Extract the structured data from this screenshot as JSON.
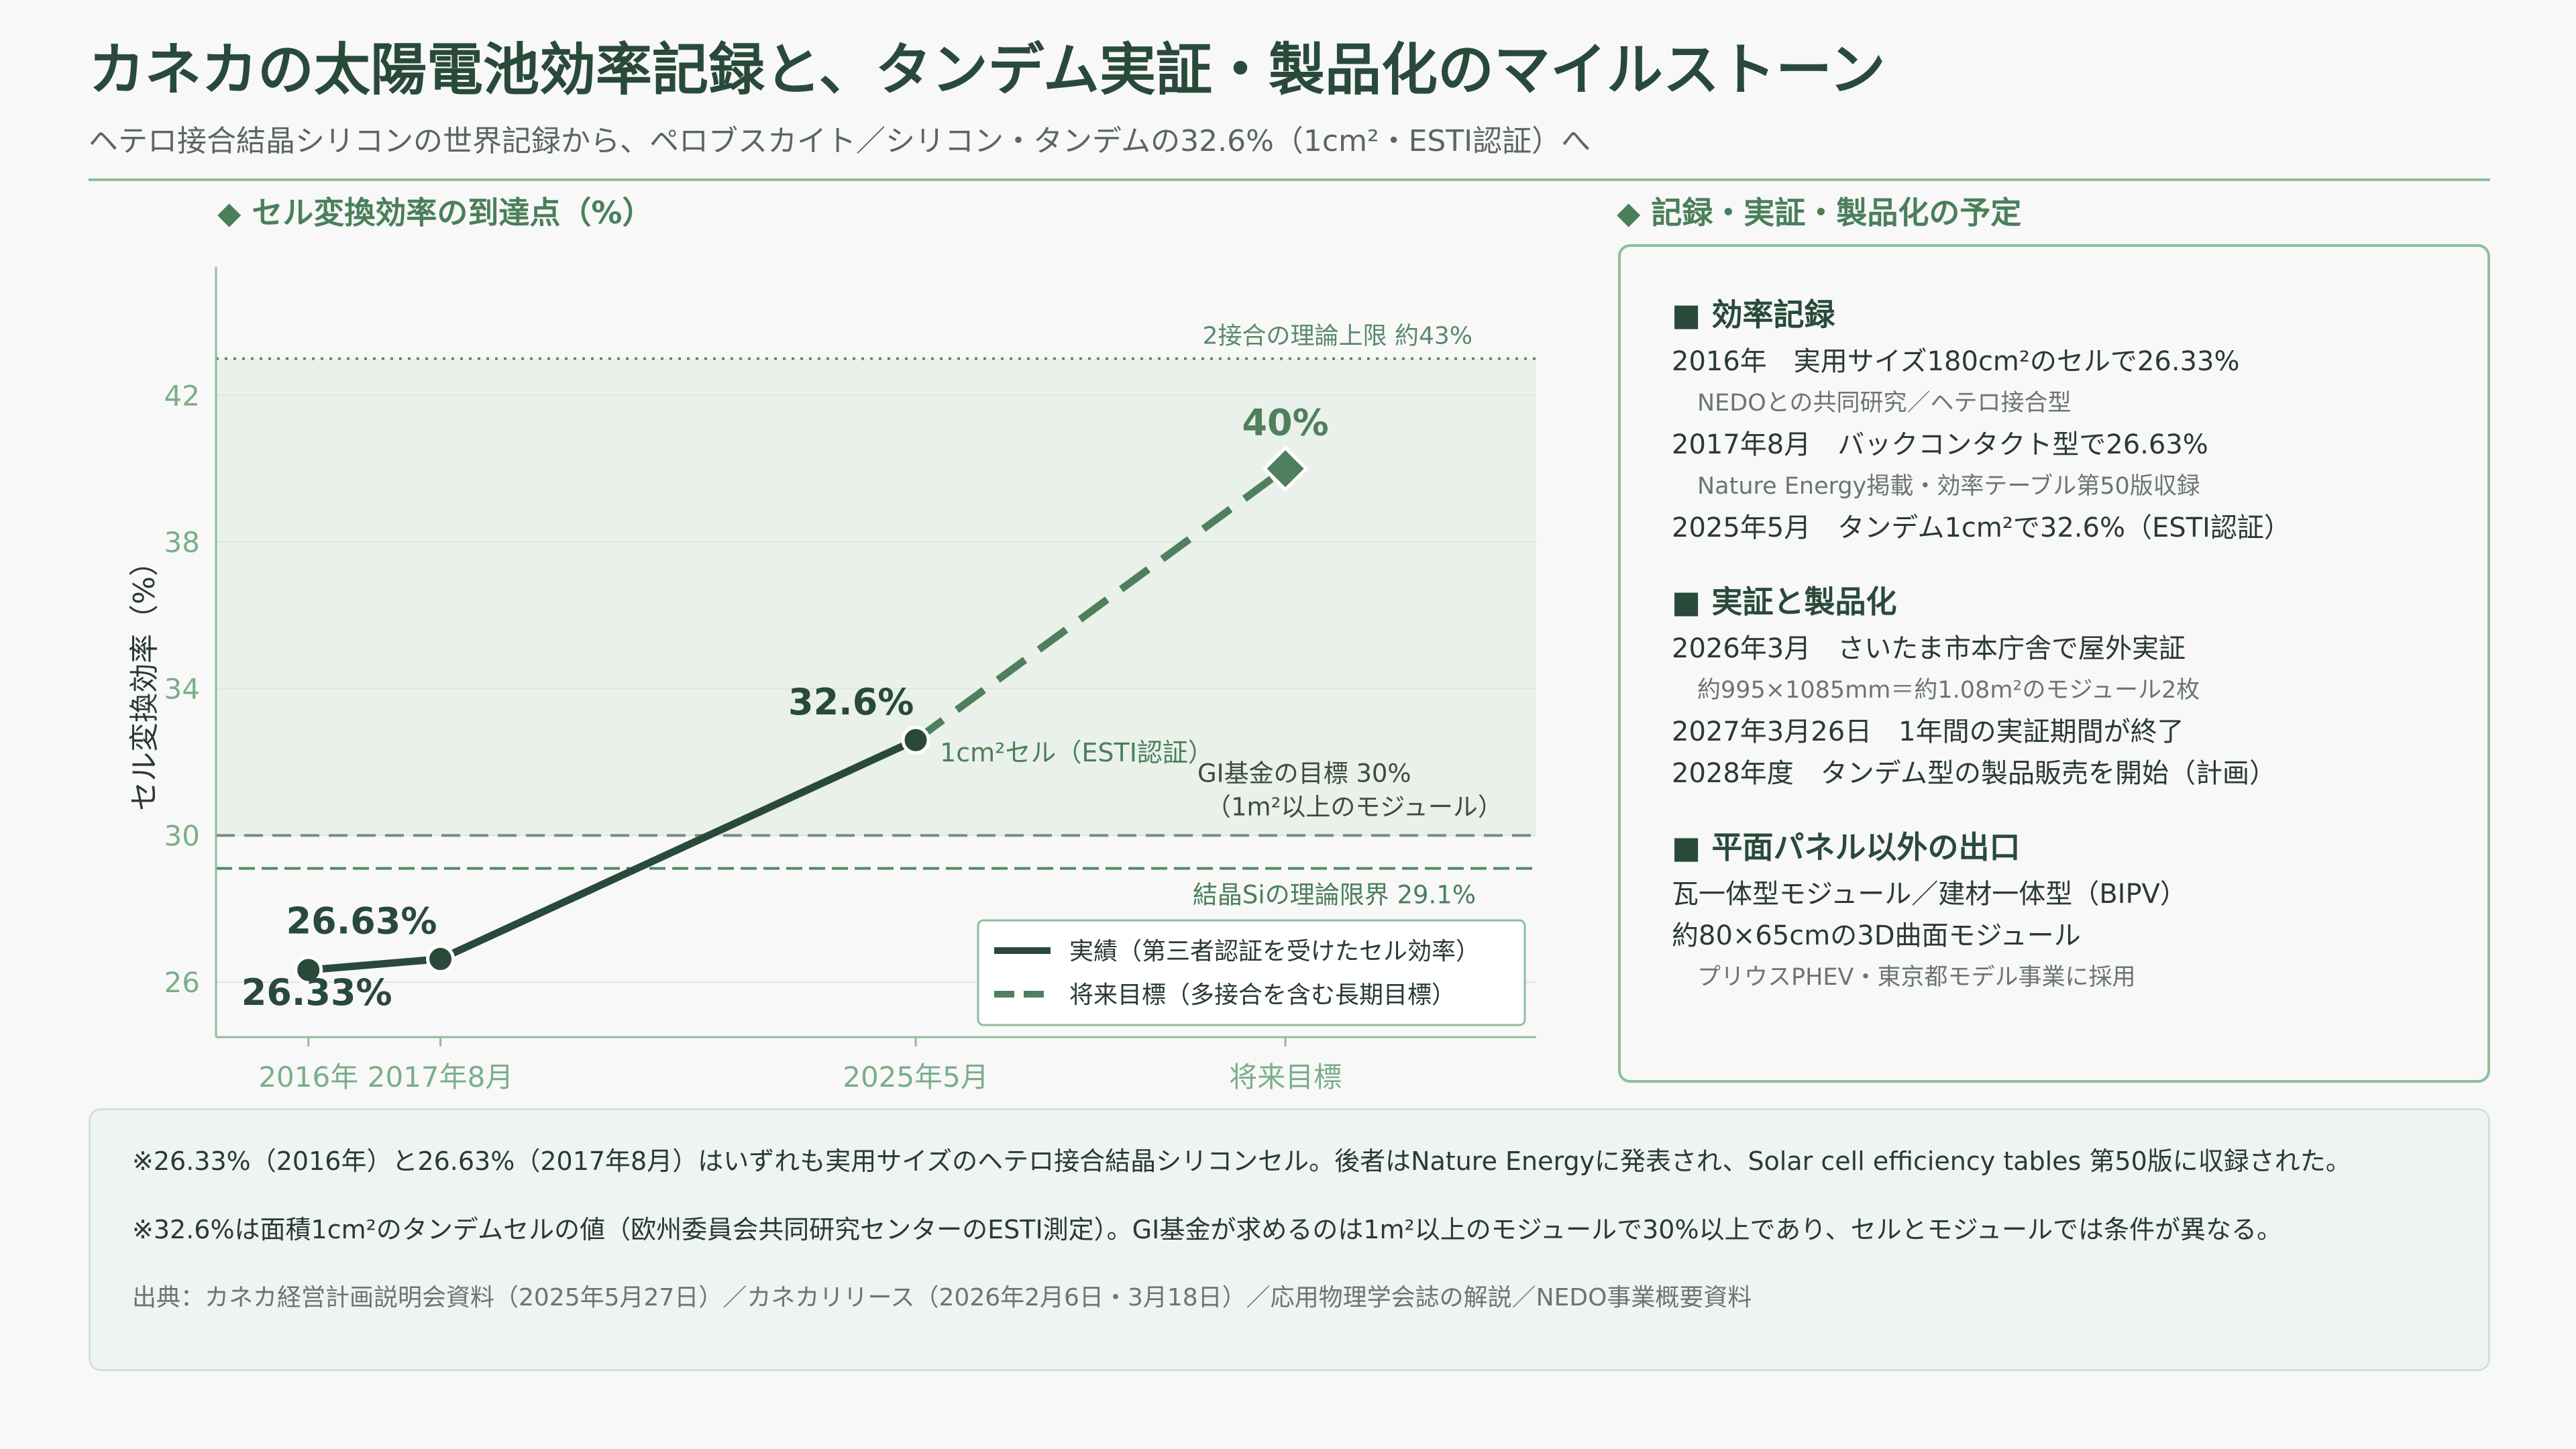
{
  "title": "カネカの太陽電池効率記録と、タンデム実証・製品化のマイルストーン",
  "subtitle": "ヘテロ接合結晶シリコンの世界記録から、ペロブスカイト／シリコン・タンデムの32.6%（1cm²・ESTI認証）へ",
  "chart_section_title": "◆ セル変換効率の到達点（%）",
  "side_section_title": "◆ 記録・実証・製品化の予定",
  "colors": {
    "primary": "#294a3a",
    "accent": "#4a7f5a",
    "grid_band": "#e9f1ea",
    "axis_text": "#7aae8a",
    "border": "#8cbf9c"
  },
  "chart_data": {
    "type": "line",
    "ylabel": "セル変換効率（%）",
    "ylim": [
      24.5,
      45.5
    ],
    "yticks": [
      26,
      30,
      34,
      38,
      42
    ],
    "categories": [
      "2016年",
      "2017年8月",
      "2025年5月",
      "将来目標"
    ],
    "x_positions": [
      0,
      1,
      4.6,
      7.4
    ],
    "xlim": [
      -0.7,
      9.3
    ],
    "series": [
      {
        "name": "実績（第三者認証を受けたセル効率）",
        "style": "solid",
        "points": [
          {
            "category": "2016年",
            "y": 26.33,
            "label": "26.33%"
          },
          {
            "category": "2017年8月",
            "y": 26.63,
            "label": "26.63%"
          },
          {
            "category": "2025年5月",
            "y": 32.6,
            "label": "32.6%"
          }
        ]
      },
      {
        "name": "将来目標（多接合を含む長期目標）",
        "style": "dashed",
        "points": [
          {
            "category": "2025年5月",
            "y": 32.6,
            "label": ""
          },
          {
            "category": "将来目標",
            "y": 40,
            "label": "40%",
            "marker": "diamond"
          }
        ]
      }
    ],
    "annotations": {
      "point_note": "1cm²セル（ESTI認証）",
      "theory_limit_label": "2接合の理論上限 約43%",
      "theory_limit_value": 43,
      "gi_target_label_1": "GI基金の目標 30%",
      "gi_target_label_2": "（1m²以上のモジュール）",
      "gi_target_value": 30,
      "si_limit_label": "結晶Siの理論限界 29.1%",
      "si_limit_value": 29.1
    },
    "legend": {
      "placement": "bottom-right",
      "items": [
        "実績（第三者認証を受けたセル効率）",
        "将来目標（多接合を含む長期目標）"
      ]
    }
  },
  "side_panel": {
    "groups": [
      {
        "title": "■ 効率記録",
        "rows": [
          {
            "main": "2016年　実用サイズ180cm²のセルで26.33%",
            "sub": "NEDOとの共同研究／ヘテロ接合型"
          },
          {
            "main": "2017年8月　バックコンタクト型で26.63%",
            "sub": "Nature Energy掲載・効率テーブル第50版収録"
          },
          {
            "main": "2025年5月　タンデム1cm²で32.6%（ESTI認証）",
            "sub": ""
          }
        ]
      },
      {
        "title": "■ 実証と製品化",
        "rows": [
          {
            "main": "2026年3月　さいたま市本庁舎で屋外実証",
            "sub": "約995×1085mm＝約1.08m²のモジュール2枚"
          },
          {
            "main": "2027年3月26日　1年間の実証期間が終了",
            "sub": ""
          },
          {
            "main": "2028年度　タンデム型の製品販売を開始（計画）",
            "sub": ""
          }
        ]
      },
      {
        "title": "■ 平面パネル以外の出口",
        "rows": [
          {
            "main": "瓦一体型モジュール／建材一体型（BIPV）",
            "sub": ""
          },
          {
            "main": "約80×65cmの3D曲面モジュール",
            "sub": "プリウスPHEV・東京都モデル事業に採用"
          }
        ]
      }
    ]
  },
  "notes": {
    "note1": "※26.33%（2016年）と26.63%（2017年8月）はいずれも実用サイズのヘテロ接合結晶シリコンセル。後者はNature Energyに発表され、Solar cell efficiency tables 第50版に収録された。",
    "note2": "※32.6%は面積1cm²のタンデムセルの値（欧州委員会共同研究センターのESTI測定）。GI基金が求めるのは1m²以上のモジュールで30%以上であり、セルとモジュールでは条件が異なる。",
    "source": "出典：カネカ経営計画説明会資料（2025年5月27日）／カネカリリース（2026年2月6日・3月18日）／応用物理学会誌の解説／NEDO事業概要資料"
  }
}
